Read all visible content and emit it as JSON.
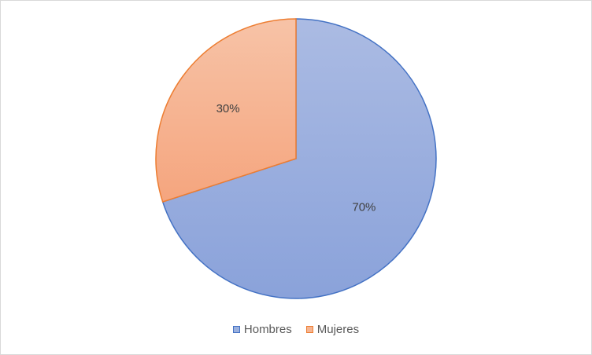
{
  "chart_data": {
    "type": "pie",
    "categories": [
      "Hombres",
      "Mujeres"
    ],
    "values": [
      70,
      30
    ],
    "data_labels": [
      "70%",
      "30%"
    ],
    "colors": [
      "#8EA9DB",
      "#F4B183"
    ],
    "border_colors": [
      "#4472C4",
      "#ED7D31"
    ],
    "legend_position": "bottom",
    "start_angle": "12 o'clock, clockwise"
  }
}
